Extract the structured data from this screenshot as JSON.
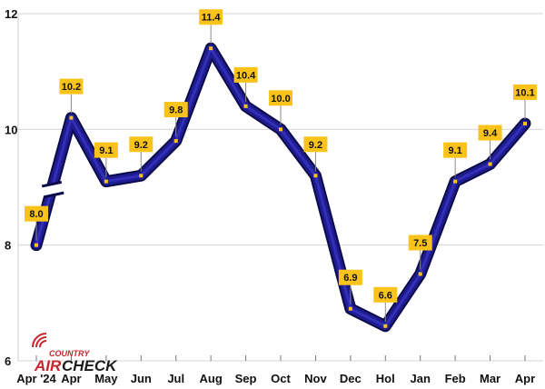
{
  "chart_data": {
    "type": "line",
    "title": "",
    "xlabel": "",
    "ylabel": "",
    "categories": [
      "Apr '24",
      "Apr",
      "May",
      "Jun",
      "Jul",
      "Aug",
      "Sep",
      "Oct",
      "Nov",
      "Dec",
      "Hol",
      "Jan",
      "Feb",
      "Mar",
      "Apr"
    ],
    "series": [
      {
        "name": "",
        "values": [
          8.0,
          10.2,
          9.1,
          9.2,
          9.8,
          11.4,
          10.4,
          10.0,
          9.2,
          6.9,
          6.6,
          7.5,
          9.1,
          9.4,
          10.1
        ],
        "labels": [
          "8.0",
          "10.2",
          "9.1",
          "9.2",
          "9.8",
          "11.4",
          "10.4",
          "10.0",
          "9.2",
          "6.9",
          "6.6",
          "7.5",
          "9.1",
          "9.4",
          "10.1"
        ]
      }
    ],
    "ylim": [
      6,
      12
    ],
    "yticks": [
      "6",
      "8",
      "10",
      "12"
    ],
    "grid": true,
    "legend": "none",
    "axis_break": "between Apr '24 and Apr",
    "colors": {
      "line": "#1f1c8f",
      "line_dark": "#0b0a4a",
      "label_bg": "#f9c31a",
      "marker": "#f9c31a",
      "grid": "#d4d4d4"
    }
  },
  "logo": {
    "top": "COUNTRY",
    "air": "AIR",
    "check": "CHECK"
  }
}
